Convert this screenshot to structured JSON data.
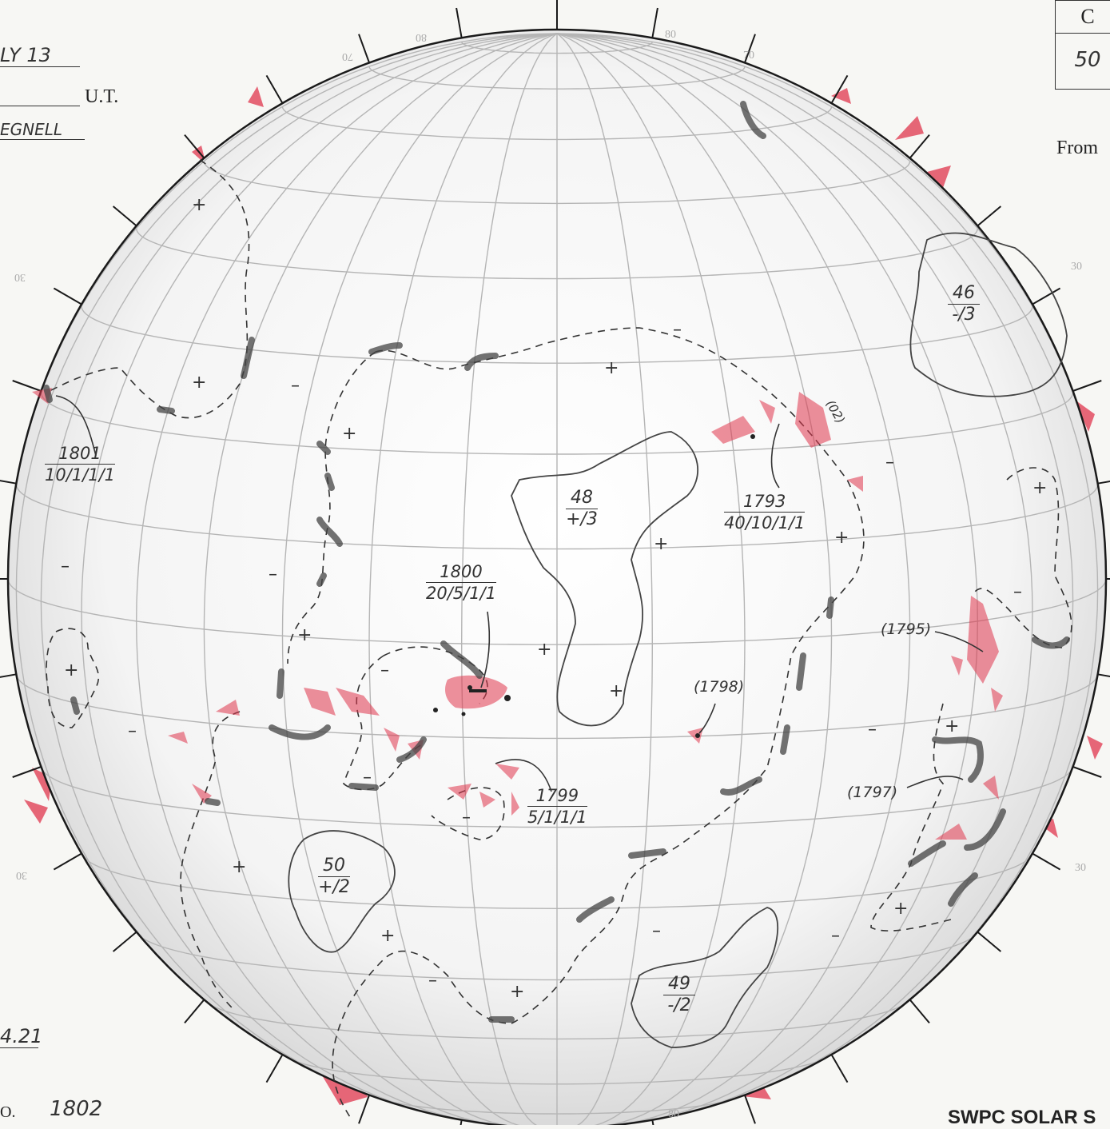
{
  "header": {
    "date_fragment": "LY 13",
    "ut_label": "U.T.",
    "observer_fragment": "EGNELL",
    "from_label": "From"
  },
  "table": {
    "col_header": "C",
    "value": "50"
  },
  "footer": {
    "value_fragment": "4.21",
    "number_prefix": "O.",
    "number": "1802",
    "title_fragment": "SWPC SOLAR S"
  },
  "grid_labels": {
    "lat_left_top": "30",
    "lat_left_bottom": "30",
    "lat_right_top": "30",
    "lat_right_bottom": "30",
    "top_80a": "80",
    "top_70a": "70",
    "top_80b": "80",
    "top_70b": "70",
    "bottom_80": "80"
  },
  "regions": [
    {
      "id": "r1801",
      "number": "1801",
      "detail": "10/1/1/1"
    },
    {
      "id": "r1800",
      "number": "1800",
      "detail": "20/5/1/1"
    },
    {
      "id": "r1793",
      "number": "1793",
      "detail": "40/10/1/1"
    },
    {
      "id": "r1799",
      "number": "1799",
      "detail": "5/1/1/1"
    }
  ],
  "plain_labels": [
    {
      "id": "p1795",
      "text": "(1795)"
    },
    {
      "id": "p1798",
      "text": "(1798)"
    },
    {
      "id": "p1797",
      "text": "(1797)"
    },
    {
      "id": "p02",
      "text": "(02)"
    }
  ],
  "coronal_holes": [
    {
      "id": "ch48",
      "number": "48",
      "value": "+/3"
    },
    {
      "id": "ch46",
      "number": "46",
      "value": "-/3"
    },
    {
      "id": "ch50",
      "number": "50",
      "value": "+/2"
    },
    {
      "id": "ch49",
      "number": "49",
      "value": "-/2"
    }
  ],
  "polarity": {
    "plus": "+",
    "minus": "–"
  },
  "colors": {
    "grid": "#b5b5b5",
    "disk_rim": "#1a1a1a",
    "plage_red": "#e0364d",
    "pencil": "#2d2d2d",
    "paper": "#f7f7f4"
  }
}
